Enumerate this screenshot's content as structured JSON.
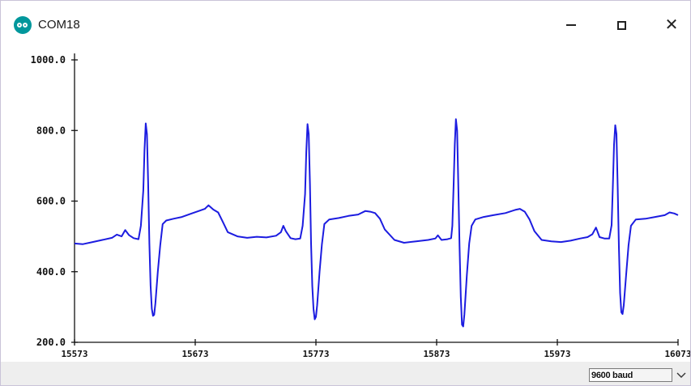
{
  "window": {
    "title": "COM18",
    "minimize_glyph": "minimize-icon",
    "maximize_glyph": "maximize-icon",
    "close_glyph": "✕"
  },
  "chart_data": {
    "type": "line",
    "title": "",
    "xlabel": "",
    "ylabel": "",
    "ylim": [
      200,
      1000
    ],
    "xlim": [
      15573,
      16073
    ],
    "y_ticks": [
      "200.0",
      "400.0",
      "600.0",
      "800.0",
      "1000.0"
    ],
    "x_ticks": [
      "15573",
      "15673",
      "15773",
      "15873",
      "15973",
      "16073"
    ],
    "grid": false,
    "series": [
      {
        "name": "",
        "color": "#1c1ce0",
        "points": [
          [
            15573,
            480
          ],
          [
            15580,
            478
          ],
          [
            15588,
            484
          ],
          [
            15596,
            490
          ],
          [
            15604,
            496
          ],
          [
            15608,
            505
          ],
          [
            15612,
            500
          ],
          [
            15615,
            518
          ],
          [
            15618,
            504
          ],
          [
            15622,
            495
          ],
          [
            15626,
            492
          ],
          [
            15628,
            530
          ],
          [
            15630,
            630
          ],
          [
            15631,
            745
          ],
          [
            15632,
            820
          ],
          [
            15633,
            790
          ],
          [
            15634,
            650
          ],
          [
            15635,
            480
          ],
          [
            15636,
            360
          ],
          [
            15637,
            295
          ],
          [
            15638,
            275
          ],
          [
            15639,
            278
          ],
          [
            15640,
            310
          ],
          [
            15642,
            400
          ],
          [
            15644,
            475
          ],
          [
            15646,
            535
          ],
          [
            15649,
            545
          ],
          [
            15655,
            550
          ],
          [
            15662,
            555
          ],
          [
            15670,
            565
          ],
          [
            15676,
            572
          ],
          [
            15681,
            578
          ],
          [
            15684,
            588
          ],
          [
            15688,
            576
          ],
          [
            15692,
            568
          ],
          [
            15696,
            540
          ],
          [
            15700,
            512
          ],
          [
            15708,
            500
          ],
          [
            15716,
            496
          ],
          [
            15724,
            499
          ],
          [
            15732,
            497
          ],
          [
            15740,
            502
          ],
          [
            15744,
            512
          ],
          [
            15746,
            530
          ],
          [
            15748,
            515
          ],
          [
            15752,
            495
          ],
          [
            15756,
            492
          ],
          [
            15760,
            494
          ],
          [
            15762,
            530
          ],
          [
            15764,
            620
          ],
          [
            15765,
            740
          ],
          [
            15766,
            818
          ],
          [
            15767,
            790
          ],
          [
            15768,
            650
          ],
          [
            15769,
            480
          ],
          [
            15770,
            360
          ],
          [
            15771,
            295
          ],
          [
            15772,
            265
          ],
          [
            15773,
            272
          ],
          [
            15774,
            305
          ],
          [
            15776,
            400
          ],
          [
            15778,
            478
          ],
          [
            15780,
            535
          ],
          [
            15784,
            548
          ],
          [
            15792,
            552
          ],
          [
            15800,
            558
          ],
          [
            15808,
            562
          ],
          [
            15814,
            572
          ],
          [
            15818,
            570
          ],
          [
            15822,
            566
          ],
          [
            15826,
            550
          ],
          [
            15830,
            520
          ],
          [
            15838,
            490
          ],
          [
            15846,
            482
          ],
          [
            15856,
            486
          ],
          [
            15866,
            490
          ],
          [
            15872,
            494
          ],
          [
            15874,
            503
          ],
          [
            15877,
            490
          ],
          [
            15882,
            492
          ],
          [
            15885,
            495
          ],
          [
            15886,
            530
          ],
          [
            15887,
            640
          ],
          [
            15888,
            760
          ],
          [
            15889,
            832
          ],
          [
            15890,
            800
          ],
          [
            15891,
            640
          ],
          [
            15892,
            470
          ],
          [
            15893,
            330
          ],
          [
            15894,
            250
          ],
          [
            15895,
            245
          ],
          [
            15896,
            280
          ],
          [
            15898,
            390
          ],
          [
            15900,
            480
          ],
          [
            15902,
            530
          ],
          [
            15905,
            548
          ],
          [
            15912,
            555
          ],
          [
            15920,
            560
          ],
          [
            15930,
            566
          ],
          [
            15938,
            575
          ],
          [
            15942,
            578
          ],
          [
            15946,
            570
          ],
          [
            15950,
            548
          ],
          [
            15954,
            515
          ],
          [
            15960,
            490
          ],
          [
            15968,
            486
          ],
          [
            15976,
            484
          ],
          [
            15984,
            488
          ],
          [
            15992,
            494
          ],
          [
            15998,
            498
          ],
          [
            16002,
            506
          ],
          [
            16005,
            525
          ],
          [
            16008,
            498
          ],
          [
            16012,
            494
          ],
          [
            16016,
            494
          ],
          [
            16018,
            532
          ],
          [
            16019,
            640
          ],
          [
            16020,
            760
          ],
          [
            16021,
            815
          ],
          [
            16022,
            790
          ],
          [
            16023,
            640
          ],
          [
            16024,
            470
          ],
          [
            16025,
            340
          ],
          [
            16026,
            285
          ],
          [
            16027,
            280
          ],
          [
            16028,
            305
          ],
          [
            16030,
            390
          ],
          [
            16032,
            475
          ],
          [
            16034,
            530
          ],
          [
            16038,
            548
          ],
          [
            16046,
            550
          ],
          [
            16054,
            555
          ],
          [
            16062,
            560
          ],
          [
            16066,
            568
          ],
          [
            16070,
            565
          ],
          [
            16073,
            560
          ]
        ]
      }
    ]
  },
  "statusbar": {
    "baud_value": "9600 baud",
    "dropdown_icon": "chevron-down-icon"
  }
}
